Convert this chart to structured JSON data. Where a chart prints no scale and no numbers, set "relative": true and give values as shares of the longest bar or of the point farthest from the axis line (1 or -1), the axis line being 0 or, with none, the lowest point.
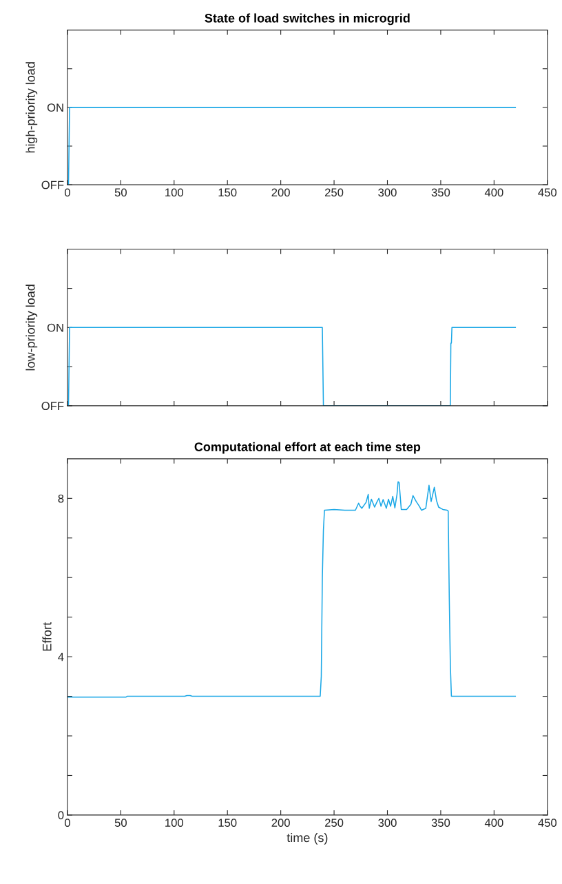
{
  "chart_data": [
    {
      "type": "line",
      "title": "State of load switches in microgrid",
      "ylabel": "high-priority load",
      "xlim": [
        0,
        450
      ],
      "xticks": [
        0,
        50,
        100,
        150,
        200,
        250,
        300,
        350,
        400,
        450
      ],
      "relative": true,
      "annotations": [
        "OFF",
        "ON"
      ],
      "series": [
        {
          "color": "#1aa7e6",
          "x": [
            0,
            1,
            2,
            420
          ],
          "values": [
            0,
            0,
            1,
            1
          ]
        }
      ]
    },
    {
      "type": "line",
      "ylabel": "low-priority load",
      "xlim": [
        0,
        450
      ],
      "xticks": [
        0,
        50,
        100,
        150,
        200,
        250,
        300,
        350,
        400,
        450
      ],
      "relative": true,
      "annotations": [
        "OFF",
        "ON"
      ],
      "tick_labels": "y",
      "series": [
        {
          "color": "#1aa7e6",
          "x": [
            0,
            1,
            2,
            238,
            239,
            239.5,
            240,
            359,
            359.5,
            360,
            360.5,
            420
          ],
          "values": [
            0,
            0,
            1,
            1,
            1,
            0.5,
            0,
            0,
            0.8,
            0.8,
            1,
            1
          ]
        }
      ]
    },
    {
      "type": "line",
      "title": "Computational effort at each time step",
      "xlabel": "time (s)",
      "ylabel": "Effort",
      "xlim": [
        0,
        450
      ],
      "xticks": [
        0,
        50,
        100,
        150,
        200,
        250,
        300,
        350,
        400,
        450
      ],
      "ylim": [
        0,
        9
      ],
      "yticks": [
        0,
        {
          "value": 1,
          "label": null
        },
        {
          "value": 2,
          "label": null
        },
        {
          "value": 3,
          "label": null
        },
        4,
        {
          "value": 5,
          "label": null
        },
        {
          "value": 6,
          "label": null
        },
        {
          "value": 7,
          "label": null
        },
        8
      ],
      "series": [
        {
          "color": "#1aa7e6",
          "x": [
            0,
            55,
            56,
            110,
            112,
            115,
            117,
            237,
            238,
            239,
            240,
            241,
            250,
            260,
            270,
            273,
            274,
            276,
            280,
            282,
            283,
            285,
            288,
            290,
            292,
            294,
            296,
            299,
            301,
            303,
            305,
            307,
            309,
            310,
            311,
            313,
            318,
            322,
            324,
            327,
            330,
            332,
            336,
            339,
            341,
            344,
            346,
            348,
            352,
            356,
            357,
            358,
            359,
            360,
            420
          ],
          "values": [
            2.98,
            2.98,
            3.0,
            3.0,
            3.02,
            3.02,
            3.0,
            3.0,
            3.5,
            6.0,
            7.2,
            7.7,
            7.72,
            7.7,
            7.7,
            7.88,
            7.82,
            7.75,
            7.9,
            8.1,
            7.75,
            7.98,
            7.78,
            7.9,
            8.0,
            7.8,
            7.97,
            7.75,
            7.98,
            7.8,
            8.05,
            7.76,
            8.1,
            8.42,
            8.4,
            7.72,
            7.72,
            7.85,
            8.07,
            7.92,
            7.8,
            7.7,
            7.75,
            8.33,
            7.92,
            8.28,
            7.95,
            7.78,
            7.72,
            7.7,
            7.68,
            5.5,
            3.8,
            3.0,
            3.0
          ]
        }
      ]
    }
  ]
}
